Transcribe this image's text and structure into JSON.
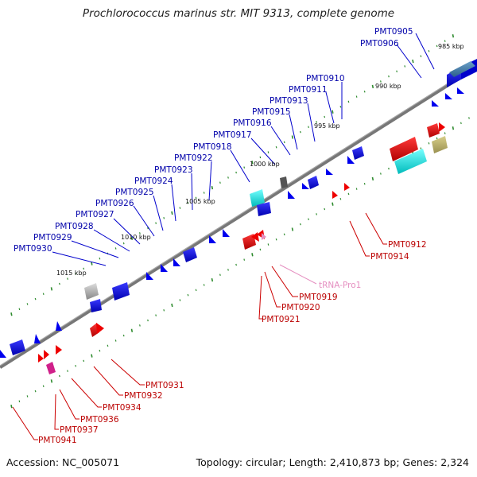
{
  "title": "Prochlorococcus marinus str. MIT 9313, complete genome",
  "footer": {
    "accession": "Accession: NC_005071",
    "summary": "Topology: circular; Length: 2,410,873 bp; Genes: 2,324"
  },
  "colors": {
    "top_gene": "#1010e0",
    "bottom_gene": "#e00000",
    "trna": "#e58fc0",
    "backbone": "#777777",
    "tick": "#2e8b2e"
  },
  "kbp_labels": [
    "985 kbp",
    "990 kbp",
    "995 kbp",
    "1000 kbp",
    "1005 kbp",
    "1010 kbp",
    "1015 kbp"
  ],
  "top_labels": [
    "PMT0905",
    "PMT0906",
    "PMT0910",
    "PMT0911",
    "PMT0913",
    "PMT0915",
    "PMT0916",
    "PMT0917",
    "PMT0918",
    "PMT0922",
    "PMT0923",
    "PMT0924",
    "PMT0925",
    "PMT0926",
    "PMT0927",
    "PMT0928",
    "PMT0929",
    "PMT0930"
  ],
  "bottom_labels": [
    "PMT0912",
    "PMT0914",
    "tRNA-Pro1",
    "PMT0919",
    "PMT0920",
    "PMT0921",
    "PMT0931",
    "PMT0932",
    "PMT0934",
    "PMT0936",
    "PMT0937",
    "PMT0941"
  ]
}
